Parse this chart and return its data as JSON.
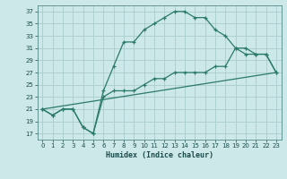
{
  "xlabel": "Humidex (Indice chaleur)",
  "background_color": "#cce8e8",
  "grid_color": "#aacccc",
  "line_color": "#2a7a6a",
  "xlim": [
    -0.5,
    23.5
  ],
  "ylim": [
    16,
    38
  ],
  "yticks": [
    17,
    19,
    21,
    23,
    25,
    27,
    29,
    31,
    33,
    35,
    37
  ],
  "xticks": [
    0,
    1,
    2,
    3,
    4,
    5,
    6,
    7,
    8,
    9,
    10,
    11,
    12,
    13,
    14,
    15,
    16,
    17,
    18,
    19,
    20,
    21,
    22,
    23
  ],
  "line1_x": [
    0,
    1,
    2,
    3,
    4,
    5,
    6,
    7,
    8,
    9,
    10,
    11,
    12,
    13,
    14,
    15,
    16,
    17,
    18,
    19,
    20,
    21,
    22,
    23
  ],
  "line1_y": [
    21,
    20,
    21,
    21,
    18,
    17,
    24,
    28,
    32,
    32,
    34,
    35,
    36,
    37,
    37,
    36,
    36,
    34,
    33,
    31,
    30,
    30,
    30,
    27
  ],
  "line2_x": [
    0,
    1,
    2,
    3,
    4,
    5,
    6,
    7,
    8,
    9,
    10,
    11,
    12,
    13,
    14,
    15,
    16,
    17,
    18,
    19,
    20,
    21,
    22,
    23
  ],
  "line2_y": [
    21,
    20,
    21,
    21,
    18,
    17,
    23,
    24,
    24,
    24,
    25,
    26,
    26,
    27,
    27,
    27,
    27,
    28,
    28,
    31,
    31,
    30,
    30,
    27
  ],
  "line3_x": [
    0,
    23
  ],
  "line3_y": [
    21,
    27
  ]
}
